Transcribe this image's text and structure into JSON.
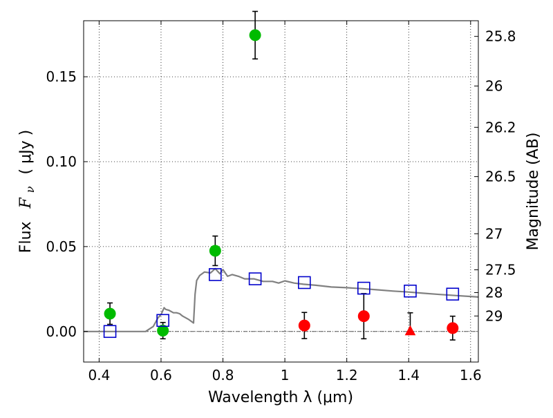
{
  "chart_data": {
    "type": "scatter",
    "xlabel": "Wavelength  λ (μm)",
    "ylabel_text": "Flux",
    "ylabel_symbol": "F",
    "ylabel_sub": "ν",
    "ylabel_unit": "( μJy )",
    "y2label": "Magnitude (AB)",
    "xlim": [
      0.35,
      1.625
    ],
    "ylim": [
      -0.018,
      0.183
    ],
    "grid": true,
    "x_ticks": [
      {
        "v": 0.4,
        "label": "0.4"
      },
      {
        "v": 0.6,
        "label": "0.6"
      },
      {
        "v": 0.8,
        "label": "0.8"
      },
      {
        "v": 1.0,
        "label": "1"
      },
      {
        "v": 1.2,
        "label": "1.2"
      },
      {
        "v": 1.4,
        "label": "1.4"
      },
      {
        "v": 1.6,
        "label": "1.6"
      }
    ],
    "y_ticks": [
      {
        "v": 0.0,
        "label": "0.00"
      },
      {
        "v": 0.05,
        "label": "0.05"
      },
      {
        "v": 0.1,
        "label": "0.10"
      },
      {
        "v": 0.15,
        "label": "0.15"
      }
    ],
    "mag_ticks": [
      {
        "m": 25.8,
        "label": "25.8"
      },
      {
        "m": 26.0,
        "label": "26"
      },
      {
        "m": 26.2,
        "label": "26.2"
      },
      {
        "m": 26.5,
        "label": "26.5"
      },
      {
        "m": 27.0,
        "label": "27"
      },
      {
        "m": 27.5,
        "label": "27.5"
      },
      {
        "m": 28.0,
        "label": "28"
      },
      {
        "m": 29.0,
        "label": "29"
      }
    ],
    "colors": {
      "model": "#808080",
      "detected": "#00bb00",
      "nondetected": "#ff0000",
      "model_photometry": "#0000cc",
      "errorbar": "#000000",
      "zero_line": "#555555"
    },
    "model_sed": [
      [
        0.35,
        0.0
      ],
      [
        0.55,
        0.0
      ],
      [
        0.575,
        0.003
      ],
      [
        0.59,
        0.008
      ],
      [
        0.6,
        0.01
      ],
      [
        0.61,
        0.014
      ],
      [
        0.615,
        0.013
      ],
      [
        0.625,
        0.0125
      ],
      [
        0.64,
        0.011
      ],
      [
        0.65,
        0.011
      ],
      [
        0.66,
        0.0105
      ],
      [
        0.67,
        0.009
      ],
      [
        0.68,
        0.008
      ],
      [
        0.69,
        0.007
      ],
      [
        0.705,
        0.005
      ],
      [
        0.71,
        0.022
      ],
      [
        0.715,
        0.03
      ],
      [
        0.725,
        0.033
      ],
      [
        0.74,
        0.035
      ],
      [
        0.76,
        0.0345
      ],
      [
        0.775,
        0.037
      ],
      [
        0.79,
        0.034
      ],
      [
        0.8,
        0.0365
      ],
      [
        0.815,
        0.0325
      ],
      [
        0.83,
        0.0335
      ],
      [
        0.85,
        0.0325
      ],
      [
        0.87,
        0.031
      ],
      [
        0.9,
        0.031
      ],
      [
        0.93,
        0.0295
      ],
      [
        0.96,
        0.0295
      ],
      [
        0.98,
        0.0285
      ],
      [
        1.0,
        0.0298
      ],
      [
        1.03,
        0.0285
      ],
      [
        1.06,
        0.0278
      ],
      [
        1.1,
        0.0272
      ],
      [
        1.15,
        0.0262
      ],
      [
        1.2,
        0.0258
      ],
      [
        1.25,
        0.0252
      ],
      [
        1.3,
        0.0245
      ],
      [
        1.35,
        0.0238
      ],
      [
        1.4,
        0.0232
      ],
      [
        1.45,
        0.0225
      ],
      [
        1.5,
        0.0218
      ],
      [
        1.55,
        0.0212
      ],
      [
        1.6,
        0.0206
      ],
      [
        1.625,
        0.0203
      ]
    ],
    "detected_points": [
      {
        "x": 0.435,
        "y": 0.0105,
        "err": 0.0063
      },
      {
        "x": 0.606,
        "y": 0.0005,
        "err": 0.0048
      },
      {
        "x": 0.775,
        "y": 0.0475,
        "err": 0.0087
      },
      {
        "x": 0.904,
        "y": 0.1745,
        "err": 0.014
      }
    ],
    "nondetected_points": [
      {
        "x": 1.063,
        "y": 0.0035,
        "err": 0.0077
      },
      {
        "x": 1.255,
        "y": 0.009,
        "err": 0.0133
      },
      {
        "x": 1.542,
        "y": 0.002,
        "err": 0.007
      }
    ],
    "upper_limit_points": [
      {
        "x": 1.405,
        "y": 0.0,
        "err_up": 0.011
      }
    ],
    "model_photometry": [
      {
        "x": 0.435,
        "y": 0.0
      },
      {
        "x": 0.606,
        "y": 0.0065
      },
      {
        "x": 0.775,
        "y": 0.0335
      },
      {
        "x": 0.904,
        "y": 0.031
      },
      {
        "x": 1.063,
        "y": 0.0288
      },
      {
        "x": 1.255,
        "y": 0.0255
      },
      {
        "x": 1.405,
        "y": 0.0238
      },
      {
        "x": 1.542,
        "y": 0.022
      }
    ]
  }
}
